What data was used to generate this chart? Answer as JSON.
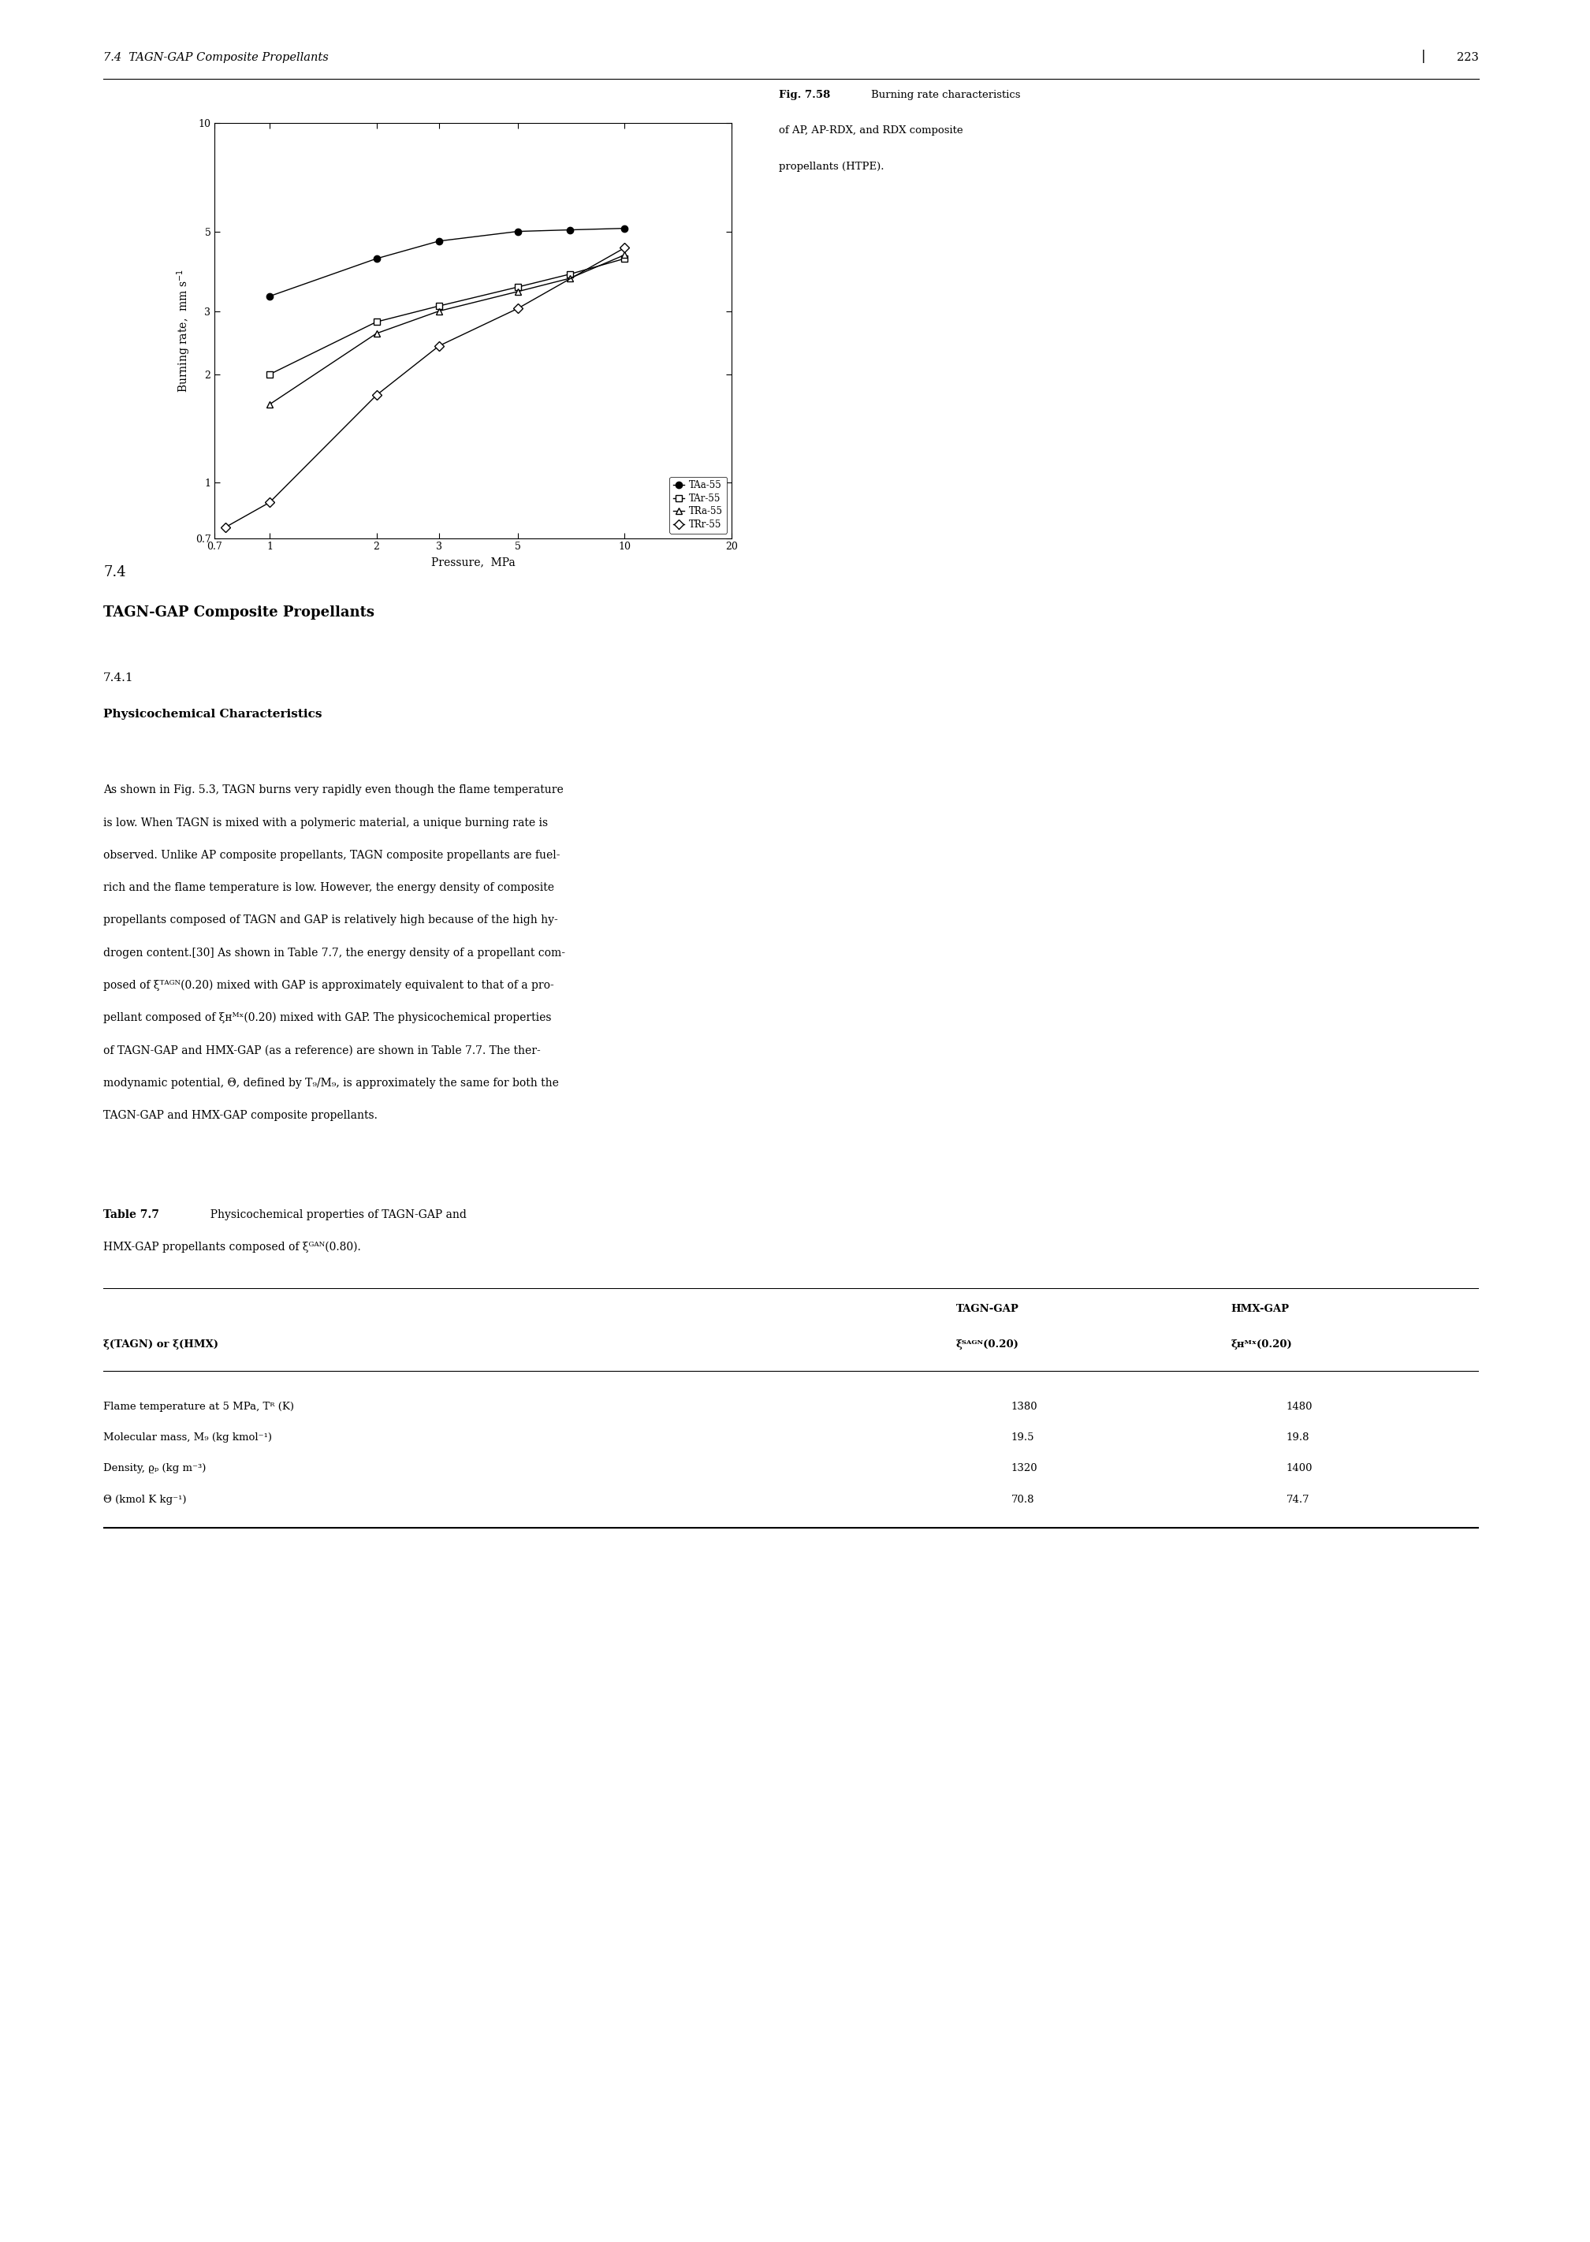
{
  "xlabel": "Pressure,  MPa",
  "ylabel": "Burning rate,  mm s",
  "xlim": [
    0.7,
    20
  ],
  "ylim": [
    0.7,
    10
  ],
  "xticks": [
    0.7,
    1,
    2,
    3,
    5,
    10,
    20
  ],
  "yticks": [
    0.7,
    1,
    2,
    3,
    5,
    10
  ],
  "series": [
    {
      "label": "TAa-55",
      "marker": "o",
      "filled": true,
      "x": [
        1.0,
        2.0,
        3.0,
        5.0,
        7.0,
        10.0
      ],
      "y": [
        3.3,
        4.2,
        4.7,
        5.0,
        5.05,
        5.1
      ]
    },
    {
      "label": "TAr-55",
      "marker": "s",
      "filled": false,
      "x": [
        1.0,
        2.0,
        3.0,
        5.0,
        7.0,
        10.0
      ],
      "y": [
        2.0,
        2.8,
        3.1,
        3.5,
        3.8,
        4.2
      ]
    },
    {
      "label": "TRa-55",
      "marker": "^",
      "filled": false,
      "x": [
        1.0,
        2.0,
        3.0,
        5.0,
        7.0,
        10.0
      ],
      "y": [
        1.65,
        2.6,
        3.0,
        3.4,
        3.7,
        4.3
      ]
    },
    {
      "label": "TRr-55",
      "marker": "D",
      "filled": false,
      "x": [
        0.75,
        1.0,
        2.0,
        3.0,
        5.0,
        10.0
      ],
      "y": [
        0.75,
        0.88,
        1.75,
        2.4,
        3.05,
        4.5
      ]
    }
  ],
  "page_header_left": "7.4  TAGN-GAP Composite Propellants",
  "page_number": "223",
  "fig_caption_bold": "Fig. 7.58",
  "fig_caption_normal": "  Burning rate characteristics\nof AP, AP-RDX, and RDX composite\npropellants (HTPE).",
  "section_number": "7.4",
  "section_title": "TAGN-GAP Composite Propellants",
  "subsection_number": "7.4.1",
  "subsection_title": "Physicochemical Characteristics",
  "body_lines": [
    "As shown in Fig. 5.3, TAGN burns very rapidly even though the flame temperature",
    "is low. When TAGN is mixed with a polymeric material, a unique burning rate is",
    "observed. Unlike AP composite propellants, TAGN composite propellants are fuel-",
    "rich and the flame temperature is low. However, the energy density of composite",
    "propellants composed of TAGN and GAP is relatively high because of the high hy-",
    "drogen content.[30] As shown in Table 7.7, the energy density of a propellant com-",
    "posed of ξᵀᴬᴳᴺ(0.20) mixed with GAP is approximately equivalent to that of a pro-",
    "pellant composed of ξʜᴹˣ(0.20) mixed with GAP. The physicochemical properties",
    "of TAGN-GAP and HMX-GAP (as a reference) are shown in Table 7.7. The ther-",
    "modynamic potential, Θ, defined by T₉/M₉, is approximately the same for both the",
    "TAGN-GAP and HMX-GAP composite propellants."
  ],
  "table_caption_bold": "Table 7.7",
  "table_caption_normal": "  Physicochemical properties of TAGN-GAP and",
  "table_caption_line2": "HMX-GAP propellants composed of ξᴳᴬᴺ(0.80).",
  "table_col1_header": "ξ(TAGN) or ξ(HMX)",
  "table_col2_header_line1": "TAGN-GAP",
  "table_col2_header_line2": "ξᵀᴬᴳᴺ(0.20)",
  "table_col3_header_line1": "HMX-GAP",
  "table_col3_header_line2": "ξʜᴹˣ(0.20)",
  "table_rows": [
    [
      "Flame temperature at 5 MPa, Tᴿ (K)",
      "1380",
      "1480"
    ],
    [
      "Molecular mass, M₉ (kg kmol⁻¹)",
      "19.5",
      "19.8"
    ],
    [
      "Density, ϱₚ (kg m⁻³)",
      "1320",
      "1400"
    ],
    [
      "Θ (kmol K kg⁻¹)",
      "70.8",
      "74.7"
    ]
  ]
}
